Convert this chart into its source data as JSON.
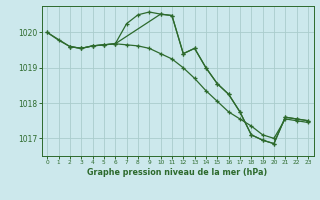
{
  "background_color": "#cce8ec",
  "grid_color": "#aacccc",
  "line_color": "#2d6a2d",
  "title": "Graphe pression niveau de la mer (hPa)",
  "xlim": [
    -0.5,
    23.5
  ],
  "ylim": [
    1016.5,
    1020.75
  ],
  "yticks": [
    1017,
    1018,
    1019,
    1020
  ],
  "xticks": [
    0,
    1,
    2,
    3,
    4,
    5,
    6,
    7,
    8,
    9,
    10,
    11,
    12,
    13,
    14,
    15,
    16,
    17,
    18,
    19,
    20,
    21,
    22,
    23
  ],
  "series1": {
    "x": [
      0,
      1,
      2,
      3,
      4,
      5,
      6,
      7,
      8,
      9,
      10,
      11,
      12,
      13,
      14,
      15,
      16,
      17,
      18,
      19,
      20,
      21,
      22,
      23
    ],
    "y": [
      1020.0,
      1019.78,
      1019.6,
      1019.55,
      1019.62,
      1019.65,
      1019.68,
      1020.25,
      1020.5,
      1020.58,
      1020.52,
      1020.48,
      1019.4,
      1019.55,
      1019.0,
      1018.55,
      1018.25,
      1017.75,
      1017.1,
      1016.95,
      1016.85,
      1017.6,
      1017.55,
      1017.5
    ]
  },
  "series2": {
    "x": [
      0,
      2,
      3,
      4,
      5,
      6,
      7,
      8,
      9,
      10,
      11,
      12,
      13,
      14,
      15,
      16,
      17,
      18,
      19,
      20,
      21,
      22,
      23
    ],
    "y": [
      1020.0,
      1019.6,
      1019.55,
      1019.62,
      1019.65,
      1019.68,
      1019.65,
      1019.62,
      1019.55,
      1019.4,
      1019.25,
      1019.0,
      1018.7,
      1018.35,
      1018.05,
      1017.75,
      1017.55,
      1017.35,
      1017.1,
      1017.0,
      1017.55,
      1017.5,
      1017.45
    ]
  },
  "series3": {
    "x": [
      2,
      3,
      4,
      5,
      6,
      10,
      11,
      12,
      13,
      14,
      15,
      16,
      17,
      18,
      19,
      20,
      21,
      22,
      23
    ],
    "y": [
      1019.6,
      1019.55,
      1019.62,
      1019.65,
      1019.68,
      1020.52,
      1020.48,
      1019.4,
      1019.55,
      1019.0,
      1018.55,
      1018.25,
      1017.75,
      1017.1,
      1016.95,
      1016.85,
      1017.6,
      1017.55,
      1017.5
    ]
  }
}
